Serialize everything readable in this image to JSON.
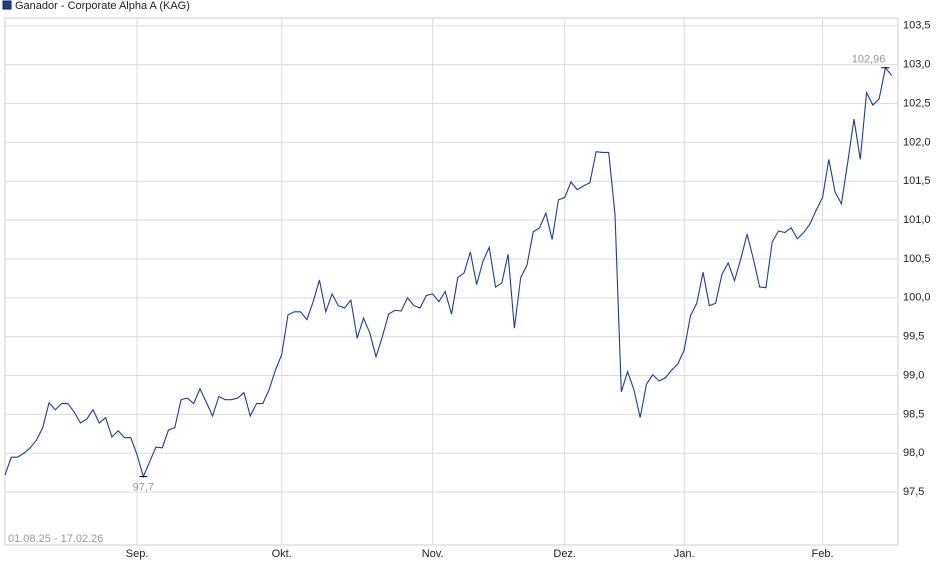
{
  "chart_data": {
    "type": "line",
    "title": "Ganador - Corporate Alpha A (KAG)",
    "subtitle": "01.08.25 - 17.02.26",
    "series": [
      {
        "name": "Ganador - Corporate Alpha A (KAG)",
        "color": "#1c3f94",
        "values": [
          97.72,
          97.95,
          97.95,
          98.0,
          98.07,
          98.17,
          98.33,
          98.65,
          98.56,
          98.64,
          98.64,
          98.53,
          98.39,
          98.44,
          98.56,
          98.39,
          98.46,
          98.21,
          98.29,
          98.2,
          98.2,
          97.98,
          97.7,
          97.89,
          98.08,
          98.07,
          98.3,
          98.33,
          98.69,
          98.71,
          98.64,
          98.83,
          98.66,
          98.48,
          98.73,
          98.69,
          98.69,
          98.71,
          98.78,
          98.48,
          98.64,
          98.64,
          98.82,
          99.07,
          99.27,
          99.78,
          99.82,
          99.82,
          99.72,
          99.95,
          100.23,
          99.82,
          100.05,
          99.9,
          99.87,
          99.97,
          99.48,
          99.74,
          99.55,
          99.24,
          99.5,
          99.79,
          99.84,
          99.83,
          100.0,
          99.9,
          99.87,
          100.03,
          100.05,
          99.95,
          100.08,
          99.79,
          100.26,
          100.32,
          100.59,
          100.17,
          100.47,
          100.65,
          100.14,
          100.19,
          100.56,
          99.61,
          100.26,
          100.42,
          100.85,
          100.9,
          101.09,
          100.75,
          101.26,
          101.29,
          101.49,
          101.39,
          101.44,
          101.48,
          101.88,
          101.87,
          101.87,
          101.07,
          98.79,
          99.05,
          98.82,
          98.46,
          98.89,
          99.01,
          98.93,
          98.97,
          99.07,
          99.15,
          99.33,
          99.77,
          99.93,
          100.33,
          99.9,
          99.93,
          100.3,
          100.45,
          100.22,
          100.5,
          100.82,
          100.5,
          100.14,
          100.13,
          100.72,
          100.86,
          100.84,
          100.9,
          100.76,
          100.84,
          100.95,
          101.13,
          101.29,
          101.78,
          101.36,
          101.21,
          101.74,
          102.3,
          101.78,
          102.64,
          102.48,
          102.56,
          102.96,
          102.86
        ]
      }
    ],
    "annotations": [
      {
        "x": 22,
        "value": 97.7,
        "label": "97,7"
      },
      {
        "x": 140,
        "value": 102.96,
        "label": "102,96"
      }
    ],
    "xlim": [
      0,
      142
    ],
    "xticks": [
      {
        "value": 21,
        "label": "Sep."
      },
      {
        "value": 44,
        "label": "Okt."
      },
      {
        "value": 68,
        "label": "Nov."
      },
      {
        "value": 89,
        "label": "Dez."
      },
      {
        "value": 108,
        "label": "Jan."
      },
      {
        "value": 130,
        "label": "Feb."
      }
    ],
    "ylim": [
      96.82,
      103.6
    ],
    "yticks": [
      {
        "value": 97.5,
        "label": "97,5"
      },
      {
        "value": 98,
        "label": "98,0"
      },
      {
        "value": 98.5,
        "label": "98,5"
      },
      {
        "value": 99,
        "label": "99,0"
      },
      {
        "value": 99.5,
        "label": "99,5"
      },
      {
        "value": 100,
        "label": "100,0"
      },
      {
        "value": 100.5,
        "label": "100,5"
      },
      {
        "value": 101,
        "label": "101,0"
      },
      {
        "value": 101.5,
        "label": "101,5"
      },
      {
        "value": 102,
        "label": "102,0"
      },
      {
        "value": 102.5,
        "label": "102,5"
      },
      {
        "value": 103,
        "label": "103,0"
      },
      {
        "value": 103.5,
        "label": "103,5"
      }
    ],
    "grid": true
  }
}
